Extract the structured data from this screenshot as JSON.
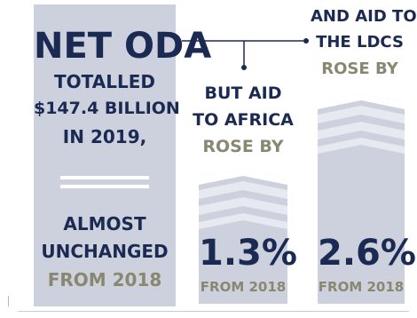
{
  "left": {
    "heading": "NET ODA",
    "line1": "TOTALLED",
    "line2": "$147.4 BILLION",
    "line3": "IN 2019,",
    "line4": "ALMOST",
    "line5": "UNCHANGED",
    "line6": "FROM 2018"
  },
  "middle": {
    "line1": "BUT AID",
    "line2": "TO AFRICA",
    "line3": "ROSE BY",
    "value": "1.3%",
    "note": "FROM 2018"
  },
  "right": {
    "line1": "AND AID TO",
    "line2": "THE LDCS",
    "line3": "ROSE BY",
    "value": "2.6%",
    "note": "FROM 2018"
  },
  "colors": {
    "navy": "#1b2a52",
    "gray": "#8a8770",
    "panel": "#ccd1dd",
    "chevron_light": "#e6e9ef"
  }
}
